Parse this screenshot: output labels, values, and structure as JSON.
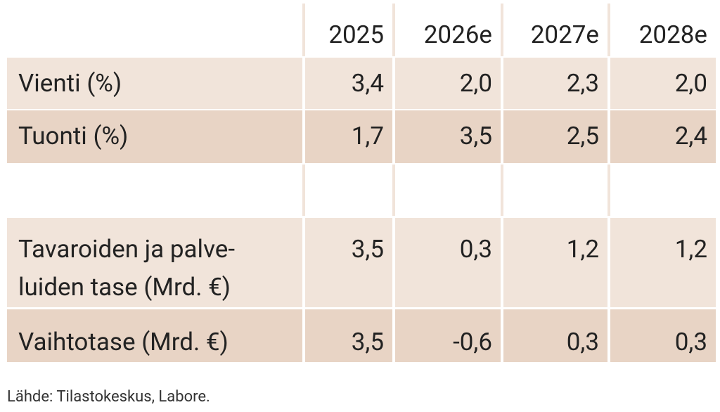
{
  "table": {
    "header": [
      "2025",
      "2026e",
      "2027e",
      "2028e"
    ],
    "rows": [
      {
        "label": [
          "Vienti (%)"
        ],
        "values": [
          "3,4",
          "2,0",
          "2,3",
          "2,0"
        ]
      },
      {
        "label": [
          "Tuonti (%)"
        ],
        "values": [
          "1,7",
          "3,5",
          "2,5",
          "2,4"
        ]
      },
      {
        "label": [
          "Tavaroiden ja palve-",
          "luiden tase (Mrd. €)"
        ],
        "values": [
          "3,5",
          "0,3",
          "1,2",
          "1,2"
        ]
      },
      {
        "label": [
          "Vaihtotase (Mrd. €)"
        ],
        "values": [
          "3,5",
          "-0,6",
          "0,3",
          "0,3"
        ]
      }
    ]
  },
  "source": "Lähde: Tilastokeskus, Labore."
}
